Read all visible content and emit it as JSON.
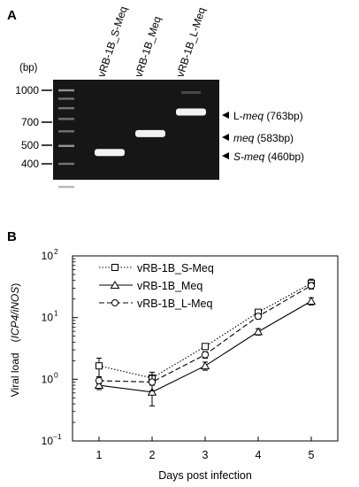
{
  "panel_a": {
    "letter": "A",
    "bp_unit": "(bp)",
    "ladder_labels": [
      "1000",
      "700",
      "500",
      "400"
    ],
    "lane_labels": [
      "vRB-1B_S-Meq",
      "vRB-1B_Meq",
      "vRB-1B_L-Meq"
    ],
    "band_labels": [
      {
        "name": "L-",
        "italic": "meq",
        "size": " (763bp)"
      },
      {
        "name": "",
        "italic": "meq",
        "size": " (583bp)"
      },
      {
        "name": "",
        "italic": "S-meq",
        "size": " (460bp)"
      }
    ],
    "band_sizes_bp": [
      763,
      583,
      460
    ],
    "ladder_bp": [
      1000,
      900,
      800,
      700,
      600,
      500,
      400,
      300
    ],
    "colors": {
      "gel": "#161616",
      "band": "#f2f2f2"
    }
  },
  "panel_b": {
    "letter": "B"
  },
  "chart_data": {
    "type": "line",
    "x": [
      1,
      2,
      3,
      4,
      5
    ],
    "xlabel": "Days post infection",
    "ylabel_prefix": "Viral load　(",
    "ylabel_italic": "ICP4/iNOS",
    "ylabel_suffix": ")",
    "ylim": [
      0.1,
      100
    ],
    "yscale": "log",
    "y_ticks": [
      0.1,
      1,
      10,
      100
    ],
    "y_tick_labels": [
      {
        "base": "10",
        "exp": "−1"
      },
      {
        "base": "10",
        "exp": "0"
      },
      {
        "base": "10",
        "exp": "1"
      },
      {
        "base": "10",
        "exp": "2"
      }
    ],
    "x_tick_labels": [
      "1",
      "2",
      "3",
      "4",
      "5"
    ],
    "legend_placement": "top-left",
    "series": [
      {
        "name": "vRB-1B_S-Meq",
        "marker": "square",
        "line": "dotted",
        "values": [
          1.65,
          1.05,
          3.4,
          12.2,
          36
        ],
        "err": [
          0.55,
          0.25,
          0.35,
          1.2,
          6
        ]
      },
      {
        "name": "vRB-1B_Meq",
        "marker": "triangle",
        "line": "solid",
        "values": [
          0.8,
          0.62,
          1.65,
          5.9,
          18.5
        ],
        "err": [
          0.12,
          0.25,
          0.25,
          0.7,
          2.5
        ]
      },
      {
        "name": "vRB-1B_L-Meq",
        "marker": "circle",
        "line": "dashed",
        "values": [
          0.95,
          0.9,
          2.5,
          10.5,
          33
        ],
        "err": [
          0.1,
          0.25,
          0.3,
          1.0,
          4
        ]
      }
    ]
  }
}
